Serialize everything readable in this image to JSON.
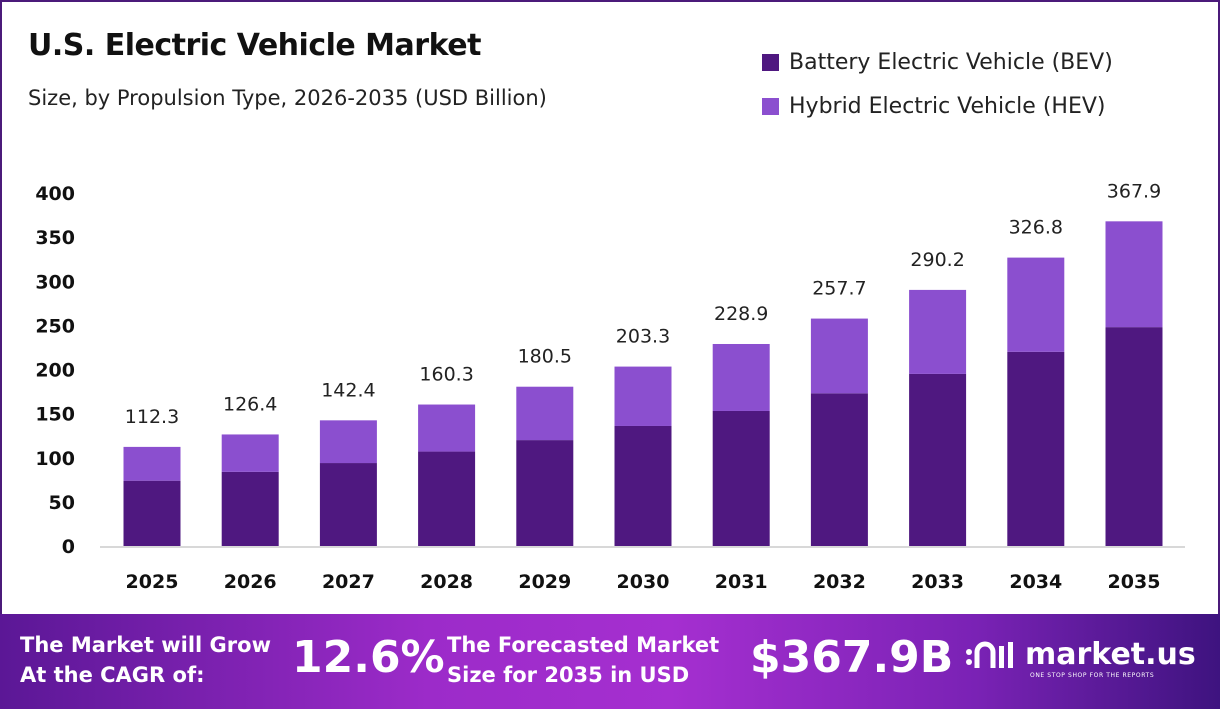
{
  "chart_data": {
    "type": "bar",
    "stacked": true,
    "title": "U.S. Electric Vehicle Market",
    "subtitle": "Size, by Propulsion Type, 2026-2035 (USD Billion)",
    "categories": [
      "2025",
      "2026",
      "2027",
      "2028",
      "2029",
      "2030",
      "2031",
      "2032",
      "2033",
      "2034",
      "2035"
    ],
    "totals": [
      "112.3",
      "126.4",
      "142.4",
      "160.3",
      "180.5",
      "203.3",
      "228.9",
      "257.7",
      "290.2",
      "326.8",
      "367.9"
    ],
    "series": [
      {
        "name": "Battery Electric Vehicle (BEV)",
        "color": "#4f1880",
        "values": [
          74,
          84,
          94,
          107,
          120,
          136,
          153,
          173,
          195,
          220,
          248
        ]
      },
      {
        "name": "Hybrid Electric Vehicle (HEV)",
        "color": "#8b4fcf",
        "values": [
          38.3,
          42.4,
          48.4,
          53.3,
          60.5,
          67.3,
          75.9,
          84.7,
          95.2,
          106.8,
          119.9
        ]
      }
    ],
    "yticks": [
      "0",
      "50",
      "100",
      "150",
      "200",
      "250",
      "300",
      "350",
      "400"
    ],
    "ylim": [
      0,
      400
    ],
    "grid": false,
    "legend": "top-right"
  },
  "footer": {
    "cagr_label_1": "The Market will Grow",
    "cagr_label_2": "At the CAGR of:",
    "cagr_value": "12.6%",
    "forecast_label_1": "The Forecasted Market",
    "forecast_label_2": "Size for 2035 in USD",
    "forecast_value": "$367.9B",
    "brand": "market.us",
    "tagline": "ONE STOP SHOP FOR THE REPORTS"
  }
}
